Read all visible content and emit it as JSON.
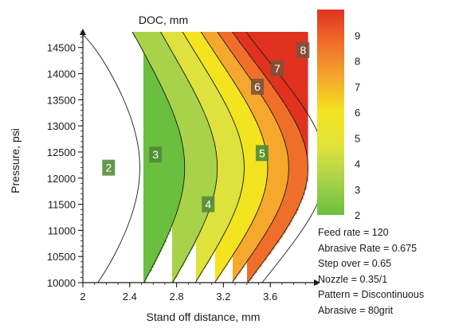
{
  "chart_data": {
    "type": "contour",
    "title": "DOC, mm",
    "xlabel": "Stand off distance, mm",
    "ylabel": "Pressure, psi",
    "xlim": [
      2.0,
      4.0
    ],
    "ylim": [
      10000,
      14800
    ],
    "x_ticks": [
      "2",
      "2.4",
      "2.8",
      "3.2",
      "3.6"
    ],
    "x_tick_values": [
      2.0,
      2.4,
      2.8,
      3.2,
      3.6
    ],
    "y_ticks": [
      "10000",
      "10500",
      "11000",
      "11500",
      "12000",
      "12500",
      "13000",
      "13500",
      "14000",
      "14500"
    ],
    "y_tick_values": [
      10000,
      10500,
      11000,
      11500,
      12000,
      12500,
      13000,
      13500,
      14000,
      14500
    ],
    "contour_levels": [
      2,
      3,
      4,
      5,
      6,
      7,
      8,
      9
    ],
    "contour_labels": [
      {
        "label": "2",
        "x": 2.22,
        "y": 12200
      },
      {
        "label": "3",
        "x": 2.62,
        "y": 12450
      },
      {
        "label": "4",
        "x": 3.07,
        "y": 11500
      },
      {
        "label": "5",
        "x": 3.53,
        "y": 12480
      },
      {
        "label": "6",
        "x": 3.49,
        "y": 13750
      },
      {
        "label": "7",
        "x": 3.66,
        "y": 14100
      },
      {
        "label": "8",
        "x": 3.88,
        "y": 14450
      }
    ],
    "colorbar": {
      "min": 2,
      "max": 10,
      "ticks": [
        "2",
        "3",
        "4",
        "5",
        "6",
        "7",
        "8",
        "9"
      ],
      "colors": [
        "#6bbf3f",
        "#a8d24a",
        "#dfe23c",
        "#f3e41f",
        "#f5a82c",
        "#ef6f2a",
        "#e0321f"
      ]
    },
    "settings": [
      "Feed rate = 120",
      "Abrasive Rate = 0.675",
      "Step over = 0.65",
      "Nozzle = 0.35/1",
      "Pattern = Discontinuous",
      "Abrasive = 80grit"
    ]
  }
}
